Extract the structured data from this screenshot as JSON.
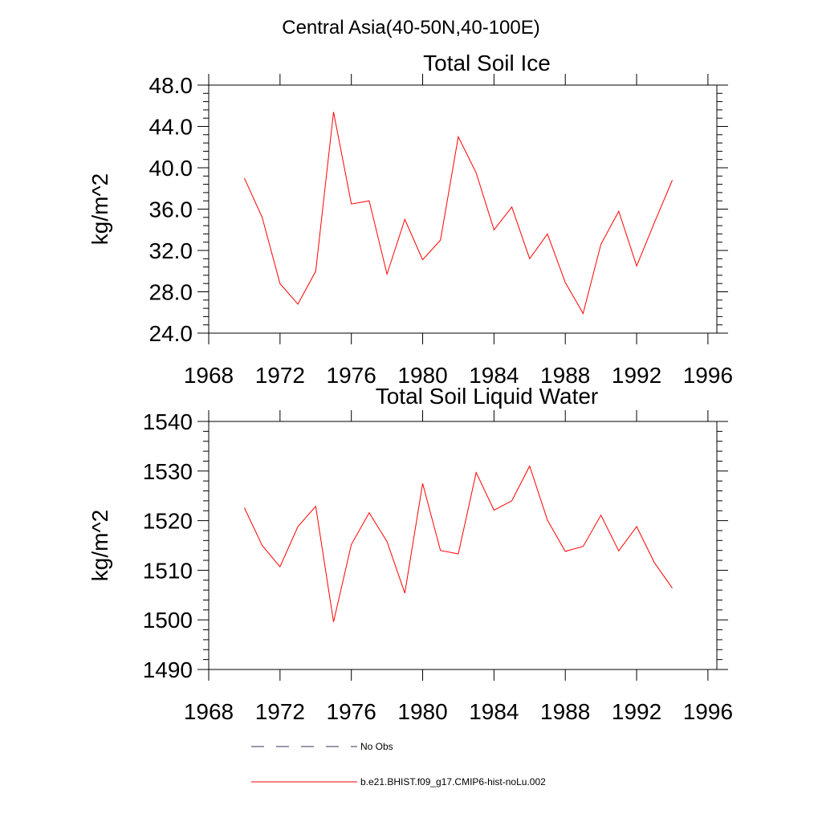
{
  "figure": {
    "title": "Central Asia(40-50N,40-100E)"
  },
  "chart_data": [
    {
      "type": "line",
      "title": "Total Soil Ice",
      "xlabel": "",
      "ylabel": "kg/m^2",
      "xlim": [
        1968,
        1996.5
      ],
      "ylim": [
        24.0,
        48.0
      ],
      "xticks": [
        1968,
        1972,
        1976,
        1980,
        1984,
        1988,
        1992,
        1996
      ],
      "yticks": [
        "24.0",
        "28.0",
        "32.0",
        "36.0",
        "40.0",
        "44.0",
        "48.0"
      ],
      "grid": false,
      "series": [
        {
          "name": "b.e21.BHIST.f09_g17.CMIP6-hist-noLu.002",
          "color": "#ff0000",
          "x": [
            1970,
            1971,
            1972,
            1973,
            1974,
            1975,
            1976,
            1977,
            1978,
            1979,
            1980,
            1981,
            1982,
            1983,
            1984,
            1985,
            1986,
            1987,
            1988,
            1989,
            1990,
            1991,
            1992,
            1993,
            1994
          ],
          "values": [
            39.0,
            35.2,
            28.8,
            26.8,
            30.0,
            45.4,
            36.5,
            36.8,
            29.7,
            35.0,
            31.1,
            33.0,
            43.0,
            39.5,
            34.0,
            36.2,
            31.2,
            33.6,
            28.9,
            25.9,
            32.6,
            35.8,
            30.5,
            34.7,
            38.8
          ]
        }
      ]
    },
    {
      "type": "line",
      "title": "Total Soil Liquid Water",
      "xlabel": "",
      "ylabel": "kg/m^2",
      "xlim": [
        1968,
        1996.5
      ],
      "ylim": [
        1490,
        1540
      ],
      "xticks": [
        1968,
        1972,
        1976,
        1980,
        1984,
        1988,
        1992,
        1996
      ],
      "yticks": [
        "1490",
        "1500",
        "1510",
        "1520",
        "1530",
        "1540"
      ],
      "grid": false,
      "series": [
        {
          "name": "b.e21.BHIST.f09_g17.CMIP6-hist-noLu.002",
          "color": "#ff0000",
          "x": [
            1970,
            1971,
            1972,
            1973,
            1974,
            1975,
            1976,
            1977,
            1978,
            1979,
            1980,
            1981,
            1982,
            1983,
            1984,
            1985,
            1986,
            1987,
            1988,
            1989,
            1990,
            1991,
            1992,
            1993,
            1994
          ],
          "values": [
            1522.6,
            1515.0,
            1510.7,
            1518.8,
            1522.9,
            1499.6,
            1515.2,
            1521.6,
            1515.8,
            1505.4,
            1527.5,
            1514.0,
            1513.3,
            1529.7,
            1522.1,
            1524.0,
            1531.0,
            1520.1,
            1513.8,
            1514.8,
            1521.1,
            1513.9,
            1518.8,
            1511.5,
            1506.4
          ]
        }
      ]
    }
  ],
  "legend": {
    "placement": "bottom",
    "entries": [
      {
        "label": "No Obs",
        "style": "dashed",
        "color": "#33335a"
      },
      {
        "label": "b.e21.BHIST.f09_g17.CMIP6-hist-noLu.002",
        "style": "solid",
        "color": "#ff0000"
      }
    ]
  }
}
